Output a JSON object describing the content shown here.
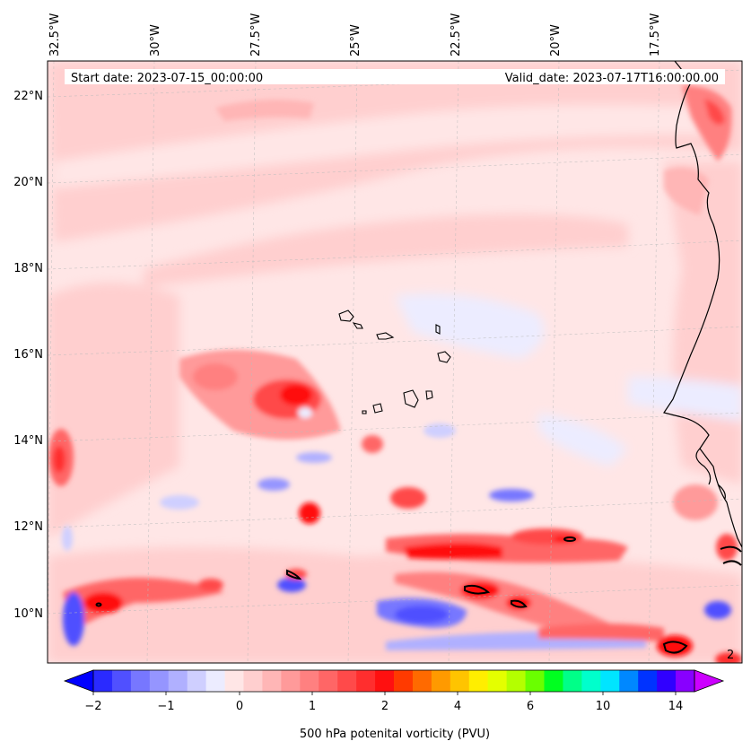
{
  "header": {
    "start_date": "Start date: 2023-07-15_00:00:00",
    "valid_date": "Valid_date: 2023-07-17T16:00:00.00"
  },
  "map": {
    "longitude_labels": [
      "32.5°W",
      "30°W",
      "27.5°W",
      "25°W",
      "22.5°W",
      "20°W",
      "17.5°W"
    ],
    "latitude_labels": [
      "22°N",
      "20°N",
      "18°N",
      "16°N",
      "14°N",
      "12°N",
      "10°N"
    ],
    "field": "500 hPa potential vorticity",
    "corner_contour_label": "2"
  },
  "colorbar": {
    "label": "500 hPa potenital vorticity (PVU)",
    "tick_labels": [
      "−2",
      "−1",
      "0",
      "1",
      "2",
      "4",
      "6",
      "10",
      "14"
    ],
    "colors": [
      "#0000ff",
      "#2a2aff",
      "#5050ff",
      "#7777ff",
      "#9595ff",
      "#b0b0ff",
      "#cfcfff",
      "#ececff",
      "#ffe6e6",
      "#ffcfcf",
      "#ffb6b6",
      "#ff9a9a",
      "#ff8080",
      "#ff6666",
      "#ff4a4a",
      "#ff2e2e",
      "#ff1010",
      "#ff3a00",
      "#ff6a00",
      "#ff9a00",
      "#ffc400",
      "#ffee00",
      "#e4ff00",
      "#b4ff00",
      "#6aff00",
      "#00ff20",
      "#00ff88",
      "#00ffcc",
      "#00e5ff",
      "#0088ff",
      "#0033ff",
      "#3000ff",
      "#8800ff",
      "#cc00ff"
    ]
  }
}
